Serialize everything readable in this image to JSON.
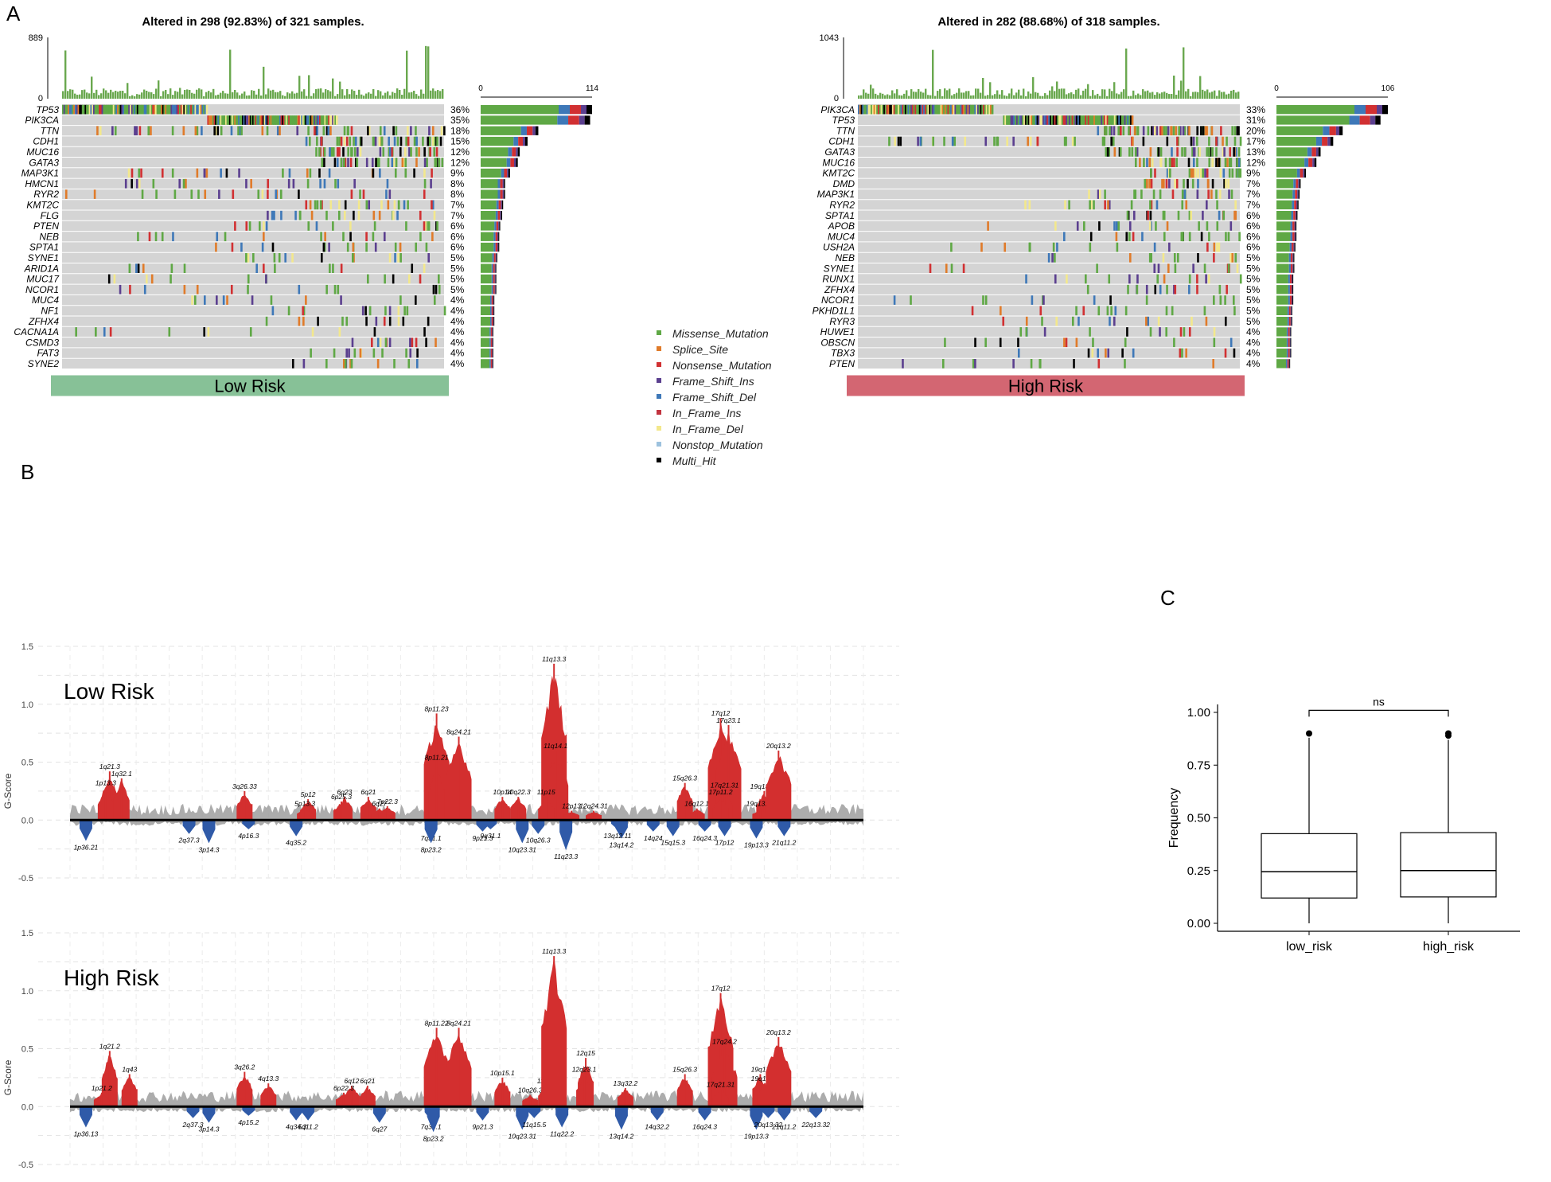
{
  "panel_labels": {
    "a": "A",
    "b": "B",
    "c": "C"
  },
  "legend": {
    "items": [
      {
        "name": "Missense_Mutation",
        "color": "#5fa845"
      },
      {
        "name": "Splice_Site",
        "color": "#e07b2a"
      },
      {
        "name": "Nonsense_Mutation",
        "color": "#d13032"
      },
      {
        "name": "Frame_Shift_Ins",
        "color": "#5b3f8f"
      },
      {
        "name": "Frame_Shift_Del",
        "color": "#3e78b8"
      },
      {
        "name": "In_Frame_Ins",
        "color": "#c2333f"
      },
      {
        "name": "In_Frame_Del",
        "color": "#f3e88c"
      },
      {
        "name": "Nonstop_Mutation",
        "color": "#9dc2de"
      },
      {
        "name": "Multi_Hit",
        "color": "#000000"
      }
    ]
  },
  "chart_data": [
    {
      "type": "heatmap",
      "id": "oncoplot-low",
      "title": "Altered in 298 (92.83%) of 321 samples.",
      "tmb_axis": {
        "max_label": "889",
        "min_label": "0"
      },
      "bar_axis": {
        "min_label": "0",
        "max_label": "114"
      },
      "group_label": "Low Risk",
      "group_color": "#87c197",
      "genes": [
        {
          "name": "TP53",
          "pct": "36%",
          "count": 114
        },
        {
          "name": "PIK3CA",
          "pct": "35%",
          "count": 112
        },
        {
          "name": "TTN",
          "pct": "18%",
          "count": 59
        },
        {
          "name": "CDH1",
          "pct": "15%",
          "count": 48
        },
        {
          "name": "MUC16",
          "pct": "12%",
          "count": 40
        },
        {
          "name": "GATA3",
          "pct": "12%",
          "count": 38
        },
        {
          "name": "MAP3K1",
          "pct": "9%",
          "count": 30
        },
        {
          "name": "HMCN1",
          "pct": "8%",
          "count": 25
        },
        {
          "name": "RYR2",
          "pct": "8%",
          "count": 25
        },
        {
          "name": "KMT2C",
          "pct": "7%",
          "count": 23
        },
        {
          "name": "FLG",
          "pct": "7%",
          "count": 22
        },
        {
          "name": "PTEN",
          "pct": "6%",
          "count": 20
        },
        {
          "name": "NEB",
          "pct": "6%",
          "count": 19
        },
        {
          "name": "SPTA1",
          "pct": "6%",
          "count": 19
        },
        {
          "name": "SYNE1",
          "pct": "5%",
          "count": 17
        },
        {
          "name": "ARID1A",
          "pct": "5%",
          "count": 16
        },
        {
          "name": "MUC17",
          "pct": "5%",
          "count": 16
        },
        {
          "name": "NCOR1",
          "pct": "5%",
          "count": 16
        },
        {
          "name": "MUC4",
          "pct": "4%",
          "count": 14
        },
        {
          "name": "NF1",
          "pct": "4%",
          "count": 14
        },
        {
          "name": "ZFHX4",
          "pct": "4%",
          "count": 14
        },
        {
          "name": "CACNA1A",
          "pct": "4%",
          "count": 13
        },
        {
          "name": "CSMD3",
          "pct": "4%",
          "count": 13
        },
        {
          "name": "FAT3",
          "pct": "4%",
          "count": 13
        },
        {
          "name": "SYNE2",
          "pct": "4%",
          "count": 13
        }
      ]
    },
    {
      "type": "heatmap",
      "id": "oncoplot-high",
      "title": "Altered in 282 (88.68%) of 318 samples.",
      "tmb_axis": {
        "max_label": "1043",
        "min_label": "0"
      },
      "bar_axis": {
        "min_label": "0",
        "max_label": "106"
      },
      "group_label": "High Risk",
      "group_color": "#d36672",
      "genes": [
        {
          "name": "PIK3CA",
          "pct": "33%",
          "count": 106
        },
        {
          "name": "TP53",
          "pct": "31%",
          "count": 99
        },
        {
          "name": "TTN",
          "pct": "20%",
          "count": 63
        },
        {
          "name": "CDH1",
          "pct": "17%",
          "count": 54
        },
        {
          "name": "GATA3",
          "pct": "13%",
          "count": 42
        },
        {
          "name": "MUC16",
          "pct": "12%",
          "count": 38
        },
        {
          "name": "KMT2C",
          "pct": "9%",
          "count": 28
        },
        {
          "name": "DMD",
          "pct": "7%",
          "count": 23
        },
        {
          "name": "MAP3K1",
          "pct": "7%",
          "count": 22
        },
        {
          "name": "RYR2",
          "pct": "7%",
          "count": 21
        },
        {
          "name": "SPTA1",
          "pct": "6%",
          "count": 20
        },
        {
          "name": "APOB",
          "pct": "6%",
          "count": 19
        },
        {
          "name": "MUC4",
          "pct": "6%",
          "count": 19
        },
        {
          "name": "USH2A",
          "pct": "6%",
          "count": 18
        },
        {
          "name": "NEB",
          "pct": "5%",
          "count": 17
        },
        {
          "name": "SYNE1",
          "pct": "5%",
          "count": 17
        },
        {
          "name": "RUNX1",
          "pct": "5%",
          "count": 16
        },
        {
          "name": "ZFHX4",
          "pct": "5%",
          "count": 16
        },
        {
          "name": "NCOR1",
          "pct": "5%",
          "count": 16
        },
        {
          "name": "PKHD1L1",
          "pct": "5%",
          "count": 15
        },
        {
          "name": "RYR3",
          "pct": "5%",
          "count": 15
        },
        {
          "name": "HUWE1",
          "pct": "4%",
          "count": 14
        },
        {
          "name": "OBSCN",
          "pct": "4%",
          "count": 14
        },
        {
          "name": "TBX3",
          "pct": "4%",
          "count": 14
        },
        {
          "name": "PTEN",
          "pct": "4%",
          "count": 13
        }
      ]
    },
    {
      "type": "area",
      "id": "gistic-low",
      "title": "Low Risk",
      "ylabel": "G-Score",
      "ylim": [
        -0.5,
        1.5
      ],
      "yticks": [
        "1.5",
        "1.0",
        "0.5",
        "0.0",
        "-0.5"
      ],
      "amp_peaks": [
        {
          "label": "1q21.3",
          "pos": 0.05,
          "value": 0.42
        },
        {
          "label": "1p13.3",
          "pos": 0.045,
          "value": 0.28
        },
        {
          "label": "1q32.1",
          "pos": 0.065,
          "value": 0.36
        },
        {
          "label": "3q26.33",
          "pos": 0.22,
          "value": 0.25
        },
        {
          "label": "5p12",
          "pos": 0.3,
          "value": 0.18
        },
        {
          "label": "5p13.3",
          "pos": 0.296,
          "value": 0.1
        },
        {
          "label": "6q23",
          "pos": 0.346,
          "value": 0.2
        },
        {
          "label": "6p25.3",
          "pos": 0.342,
          "value": 0.16
        },
        {
          "label": "6q21",
          "pos": 0.376,
          "value": 0.2
        },
        {
          "label": "6q27",
          "pos": 0.39,
          "value": 0.1
        },
        {
          "label": "7p22.3",
          "pos": 0.4,
          "value": 0.12
        },
        {
          "label": "8p11.23",
          "pos": 0.462,
          "value": 0.92
        },
        {
          "label": "8q24.21",
          "pos": 0.49,
          "value": 0.72
        },
        {
          "label": "8p11.21",
          "pos": 0.462,
          "value": 0.5
        },
        {
          "label": "10p14",
          "pos": 0.545,
          "value": 0.2
        },
        {
          "label": "10q22.3",
          "pos": 0.565,
          "value": 0.2
        },
        {
          "label": "11q13.3",
          "pos": 0.61,
          "value": 1.35
        },
        {
          "label": "11q14.1",
          "pos": 0.612,
          "value": 0.6
        },
        {
          "label": "11p15",
          "pos": 0.6,
          "value": 0.2
        },
        {
          "label": "12p13",
          "pos": 0.632,
          "value": 0.08
        },
        {
          "label": "12q24.31",
          "pos": 0.66,
          "value": 0.08
        },
        {
          "label": "15q26.3",
          "pos": 0.775,
          "value": 0.32
        },
        {
          "label": "16q12.1",
          "pos": 0.79,
          "value": 0.1
        },
        {
          "label": "17q12",
          "pos": 0.82,
          "value": 0.88
        },
        {
          "label": "17q23.1",
          "pos": 0.83,
          "value": 0.82
        },
        {
          "label": "17q21.31",
          "pos": 0.825,
          "value": 0.26
        },
        {
          "label": "17p11.2",
          "pos": 0.82,
          "value": 0.2
        },
        {
          "label": "19q13.42",
          "pos": 0.875,
          "value": 0.25
        },
        {
          "label": "19q13.31",
          "pos": 0.87,
          "value": 0.1
        },
        {
          "label": "20q13.2",
          "pos": 0.893,
          "value": 0.6
        }
      ],
      "del_peaks": [
        {
          "label": "1p36.21",
          "pos": 0.02,
          "value": 0.18
        },
        {
          "label": "2q37.3",
          "pos": 0.15,
          "value": 0.12
        },
        {
          "label": "3p14.3",
          "pos": 0.175,
          "value": 0.2
        },
        {
          "label": "4p16.3",
          "pos": 0.225,
          "value": 0.08
        },
        {
          "label": "4q35.2",
          "pos": 0.285,
          "value": 0.14
        },
        {
          "label": "7q31.1",
          "pos": 0.455,
          "value": 0.1
        },
        {
          "label": "8p23.2",
          "pos": 0.455,
          "value": 0.2
        },
        {
          "label": "9p21.3",
          "pos": 0.52,
          "value": 0.1
        },
        {
          "label": "9q31.1",
          "pos": 0.53,
          "value": 0.08
        },
        {
          "label": "10q23.31",
          "pos": 0.57,
          "value": 0.2
        },
        {
          "label": "10q26.3",
          "pos": 0.59,
          "value": 0.12
        },
        {
          "label": "11q23.3",
          "pos": 0.625,
          "value": 0.26
        },
        {
          "label": "13q14.2",
          "pos": 0.695,
          "value": 0.16
        },
        {
          "label": "13q12.11",
          "pos": 0.69,
          "value": 0.08
        },
        {
          "label": "14q24",
          "pos": 0.735,
          "value": 0.1
        },
        {
          "label": "15q15.3",
          "pos": 0.76,
          "value": 0.14
        },
        {
          "label": "16q24.3",
          "pos": 0.8,
          "value": 0.1
        },
        {
          "label": "17p12",
          "pos": 0.825,
          "value": 0.14
        },
        {
          "label": "19p13.3",
          "pos": 0.865,
          "value": 0.16
        },
        {
          "label": "21q11.2",
          "pos": 0.9,
          "value": 0.14
        }
      ]
    },
    {
      "type": "area",
      "id": "gistic-high",
      "title": "High Risk",
      "ylabel": "G-Score",
      "ylim": [
        -0.5,
        1.5
      ],
      "yticks": [
        "1.5",
        "1.0",
        "0.5",
        "0.0",
        "-0.5"
      ],
      "amp_peaks": [
        {
          "label": "1q21.2",
          "pos": 0.05,
          "value": 0.48
        },
        {
          "label": "1p21.2",
          "pos": 0.04,
          "value": 0.12
        },
        {
          "label": "1q43",
          "pos": 0.075,
          "value": 0.28
        },
        {
          "label": "3q26.2",
          "pos": 0.22,
          "value": 0.3
        },
        {
          "label": "4q13.3",
          "pos": 0.25,
          "value": 0.2
        },
        {
          "label": "6q12",
          "pos": 0.355,
          "value": 0.18
        },
        {
          "label": "6p22.3",
          "pos": 0.345,
          "value": 0.12
        },
        {
          "label": "6q21",
          "pos": 0.375,
          "value": 0.18
        },
        {
          "label": "8p11.22",
          "pos": 0.462,
          "value": 0.68
        },
        {
          "label": "8q24.21",
          "pos": 0.49,
          "value": 0.68
        },
        {
          "label": "10p15.1",
          "pos": 0.545,
          "value": 0.25
        },
        {
          "label": "10q26.3",
          "pos": 0.58,
          "value": 0.1
        },
        {
          "label": "11p15",
          "pos": 0.6,
          "value": 0.18
        },
        {
          "label": "11q13.3",
          "pos": 0.61,
          "value": 1.3
        },
        {
          "label": "12q15",
          "pos": 0.65,
          "value": 0.42
        },
        {
          "label": "12q23.1",
          "pos": 0.648,
          "value": 0.28
        },
        {
          "label": "13q32.2",
          "pos": 0.7,
          "value": 0.16
        },
        {
          "label": "15q26.3",
          "pos": 0.775,
          "value": 0.28
        },
        {
          "label": "17q12",
          "pos": 0.82,
          "value": 0.98
        },
        {
          "label": "17q24.2",
          "pos": 0.825,
          "value": 0.52
        },
        {
          "label": "17q21.31",
          "pos": 0.82,
          "value": 0.15
        },
        {
          "label": "19q12",
          "pos": 0.87,
          "value": 0.28
        },
        {
          "label": "19q13.43",
          "pos": 0.876,
          "value": 0.2
        },
        {
          "label": "20q13.2",
          "pos": 0.893,
          "value": 0.6
        }
      ],
      "del_peaks": [
        {
          "label": "1p36.13",
          "pos": 0.02,
          "value": 0.18
        },
        {
          "label": "2q37.3",
          "pos": 0.155,
          "value": 0.1
        },
        {
          "label": "3p14.3",
          "pos": 0.175,
          "value": 0.14
        },
        {
          "label": "4p15.2",
          "pos": 0.225,
          "value": 0.08
        },
        {
          "label": "4q34.3",
          "pos": 0.285,
          "value": 0.12
        },
        {
          "label": "5q11.2",
          "pos": 0.3,
          "value": 0.12
        },
        {
          "label": "6q27",
          "pos": 0.39,
          "value": 0.14
        },
        {
          "label": "7q36.1",
          "pos": 0.455,
          "value": 0.12
        },
        {
          "label": "8p23.2",
          "pos": 0.458,
          "value": 0.22
        },
        {
          "label": "9p21.3",
          "pos": 0.52,
          "value": 0.12
        },
        {
          "label": "10q23.31",
          "pos": 0.57,
          "value": 0.2
        },
        {
          "label": "11q15.5",
          "pos": 0.585,
          "value": 0.1
        },
        {
          "label": "11q22.2",
          "pos": 0.62,
          "value": 0.18
        },
        {
          "label": "13q14.2",
          "pos": 0.695,
          "value": 0.2
        },
        {
          "label": "14q32.2",
          "pos": 0.74,
          "value": 0.12
        },
        {
          "label": "16q24.3",
          "pos": 0.8,
          "value": 0.12
        },
        {
          "label": "19p13.3",
          "pos": 0.865,
          "value": 0.2
        },
        {
          "label": "20q13.32",
          "pos": 0.88,
          "value": 0.1
        },
        {
          "label": "21q11.2",
          "pos": 0.9,
          "value": 0.12
        },
        {
          "label": "22q13.32",
          "pos": 0.94,
          "value": 0.1
        }
      ]
    },
    {
      "type": "boxplot",
      "id": "frequency-boxplot",
      "ylabel": "Frequency",
      "ylim": [
        0,
        1
      ],
      "yticks": [
        "1.00",
        "0.75",
        "0.50",
        "0.25",
        "0.00"
      ],
      "categories": [
        "low_risk",
        "high_risk"
      ],
      "significance": "ns",
      "boxes": [
        {
          "name": "low_risk",
          "q1": 0.12,
          "median": 0.245,
          "q3": 0.425,
          "whisker_low": 0.0,
          "whisker_high": 0.88,
          "outliers": [
            0.9
          ]
        },
        {
          "name": "high_risk",
          "q1": 0.125,
          "median": 0.25,
          "q3": 0.43,
          "whisker_low": 0.0,
          "whisker_high": 0.87,
          "outliers": [
            0.89,
            0.9
          ]
        }
      ]
    }
  ]
}
